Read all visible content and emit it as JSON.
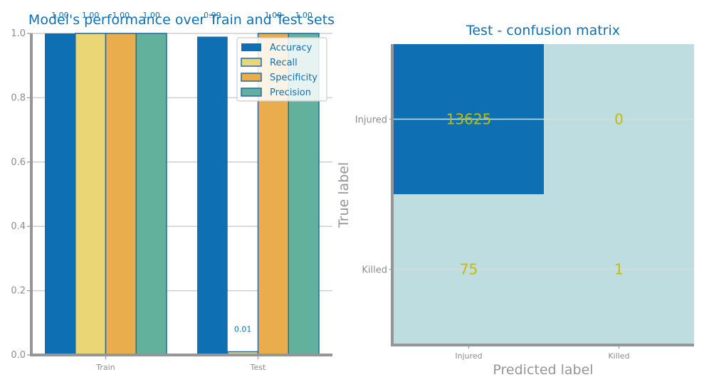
{
  "chart_data": [
    {
      "type": "bar",
      "title": "Model's performance over Train and Test sets",
      "categories": [
        "Train",
        "Test"
      ],
      "ylim": [
        0,
        1.0
      ],
      "yticks": [
        "0.0",
        "0.2",
        "0.4",
        "0.6",
        "0.8",
        "1.0"
      ],
      "grid": "horizontal",
      "legend_position": "top-right",
      "series": [
        {
          "name": "Accuracy",
          "color": "#0e70b3",
          "values": [
            1.0,
            0.99
          ],
          "labels": [
            "1.00",
            "0.99"
          ]
        },
        {
          "name": "Recall",
          "color": "#ebd675",
          "values": [
            1.0,
            0.01
          ],
          "labels": [
            "1.00",
            "0.01"
          ]
        },
        {
          "name": "Specificity",
          "color": "#e9ad4d",
          "values": [
            1.0,
            1.0
          ],
          "labels": [
            "1.00",
            "1.00"
          ]
        },
        {
          "name": "Precision",
          "color": "#62b19d",
          "values": [
            1.0,
            1.0
          ],
          "labels": [
            "1.00",
            "1.00"
          ]
        }
      ]
    },
    {
      "type": "heatmap",
      "title": "Test - confusion matrix",
      "xlabel": "Predicted label",
      "ylabel": "True label",
      "x_categories": [
        "Injured",
        "Killed"
      ],
      "y_categories": [
        "Injured",
        "Killed"
      ],
      "matrix": [
        [
          13625,
          0
        ],
        [
          75,
          1
        ]
      ],
      "colors": {
        "high": "#0e70b3",
        "low": "#bedde0",
        "text": "#bfbf00"
      }
    }
  ]
}
